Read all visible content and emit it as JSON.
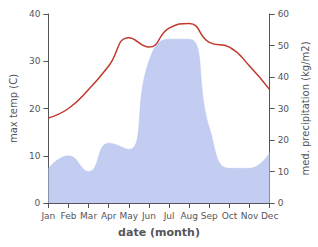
{
  "chart_data": {
    "type": "line",
    "categories": [
      "Jan",
      "Feb",
      "Mar",
      "Apr",
      "May",
      "Jun",
      "Jul",
      "Aug",
      "Sep",
      "Oct",
      "Nov",
      "Dec"
    ],
    "series": [
      {
        "type": "area",
        "color": "#b8c4ee",
        "axis": "y2",
        "values": [
          11,
          15,
          10,
          19,
          17,
          45,
          52,
          52,
          24,
          11,
          11,
          16
        ]
      },
      {
        "type": "line",
        "color": "#c0392b",
        "values": [
          18,
          20,
          24,
          29,
          35,
          33,
          37,
          38,
          34,
          33,
          29,
          24
        ]
      }
    ],
    "xlabel": "date (month)",
    "ylabel": "max temp (C)",
    "y2label": "med. precipitation (kg/m2)",
    "ylim": [
      0,
      40
    ],
    "yticks": [
      0,
      10,
      20,
      30,
      40
    ],
    "y2lim": [
      0,
      60
    ],
    "y2ticks": [
      0,
      10,
      20,
      30,
      40,
      50,
      60
    ],
    "grid": false
  }
}
